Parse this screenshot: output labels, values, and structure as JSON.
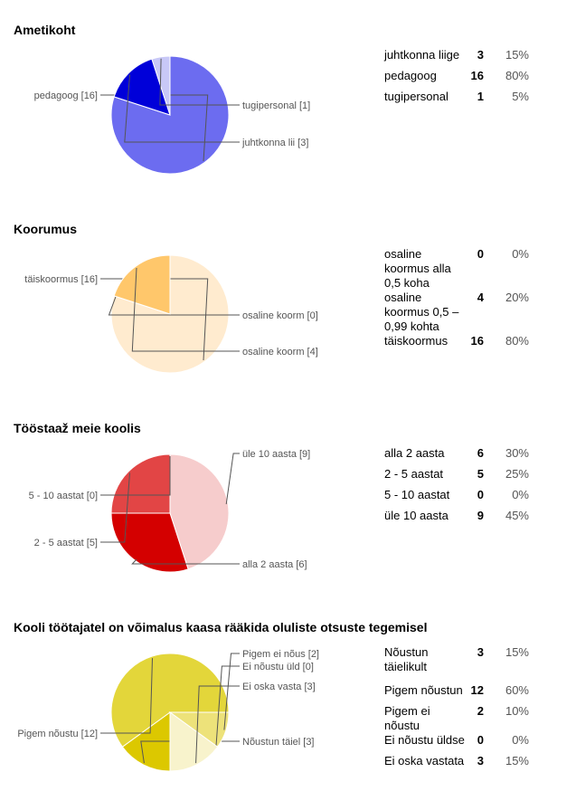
{
  "chart_data": [
    {
      "type": "pie",
      "title": "Ametikoht",
      "slices": [
        {
          "label": "juhtkonna liige",
          "pie_label": "juhtkonna lii [3]",
          "count": 3,
          "percent": "15%",
          "color": "#0000d9"
        },
        {
          "label": "pedagoog",
          "pie_label": "pedagoog [16]",
          "count": 16,
          "percent": "80%",
          "color": "#6c6cf0"
        },
        {
          "label": "tugipersonal",
          "pie_label": "tugipersonal [1]",
          "count": 1,
          "percent": "5%",
          "color": "#c8c8f7"
        }
      ]
    },
    {
      "type": "pie",
      "title": "Koorumus",
      "slices": [
        {
          "label": "osaline koormus alla 0,5 koha",
          "pie_label": "osaline koorm [0]",
          "count": 0,
          "percent": "0%",
          "color": "#ffe8b8"
        },
        {
          "label": "osaline koormus 0,5 – 0,99 kohta",
          "pie_label": "osaline koorm [4]",
          "count": 4,
          "percent": "20%",
          "color": "#ffc76b"
        },
        {
          "label": "täiskoormus",
          "pie_label": "täiskoormus [16]",
          "count": 16,
          "percent": "80%",
          "color": "#ffebcf"
        }
      ]
    },
    {
      "type": "pie",
      "title": "Tööstaaž meie koolis",
      "slices": [
        {
          "label": "alla 2 aasta",
          "pie_label": "alla 2 aasta [6]",
          "count": 6,
          "percent": "30%",
          "color": "#d40000"
        },
        {
          "label": "2 - 5 aastat",
          "pie_label": "2 - 5 aastat [5]",
          "count": 5,
          "percent": "25%",
          "color": "#e24545"
        },
        {
          "label": "5 - 10 aastat",
          "pie_label": "5 - 10 aastat [0]",
          "count": 0,
          "percent": "0%",
          "color": "#eea0a0"
        },
        {
          "label": "üle 10 aasta",
          "pie_label": "üle 10 aasta [9]",
          "count": 9,
          "percent": "45%",
          "color": "#f6cccc"
        }
      ]
    },
    {
      "type": "pie",
      "title": "Kooli töötajatel on võimalus kaasa rääkida oluliste otsuste tegemisel",
      "slices": [
        {
          "label": "Nõustun täielikult",
          "pie_label": "Nõustun täiel [3]",
          "count": 3,
          "percent": "15%",
          "color": "#dcc800"
        },
        {
          "label": "Pigem nõustun",
          "pie_label": "Pigem nõustu [12]",
          "count": 12,
          "percent": "60%",
          "color": "#e3d63a"
        },
        {
          "label": "Pigem ei nõustu",
          "pie_label": "Pigem ei nõus [2]",
          "count": 2,
          "percent": "10%",
          "color": "#ede27a"
        },
        {
          "label": "Ei nõustu üldse",
          "pie_label": "Ei nõustu üld [0]",
          "count": 0,
          "percent": "0%",
          "color": "#f2eaa8"
        },
        {
          "label": "Ei oska vastata",
          "pie_label": "Ei oska vasta [3]",
          "count": 3,
          "percent": "15%",
          "color": "#f8f3cc"
        }
      ]
    }
  ]
}
